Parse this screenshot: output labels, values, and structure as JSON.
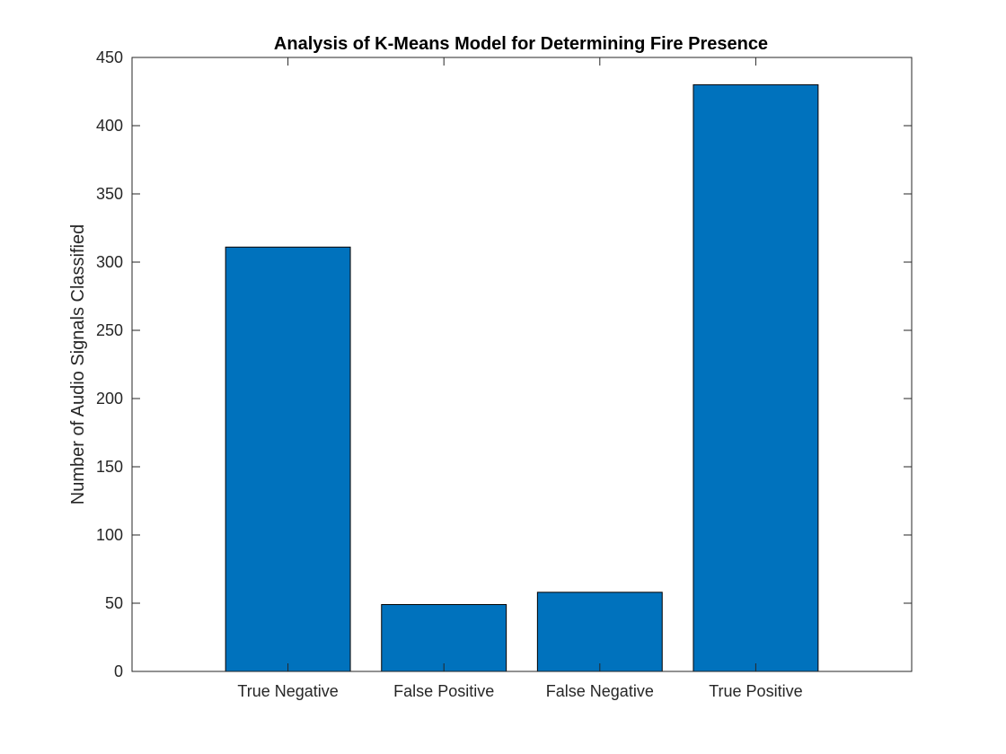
{
  "chart_data": {
    "type": "bar",
    "title": "Analysis of K-Means Model for Determining Fire Presence",
    "xlabel": "",
    "ylabel": "Number of Audio Signals Classified",
    "categories": [
      "True Negative",
      "False Positive",
      "False Negative",
      "True Positive"
    ],
    "values": [
      311,
      49,
      58,
      430
    ],
    "ylim": [
      0,
      450
    ],
    "yticks": [
      0,
      50,
      100,
      150,
      200,
      250,
      300,
      350,
      400,
      450
    ],
    "xlim": [
      0,
      5
    ],
    "grid": false,
    "legend": "none",
    "bar_color": "#0072BD",
    "axis_color": "#262626"
  }
}
